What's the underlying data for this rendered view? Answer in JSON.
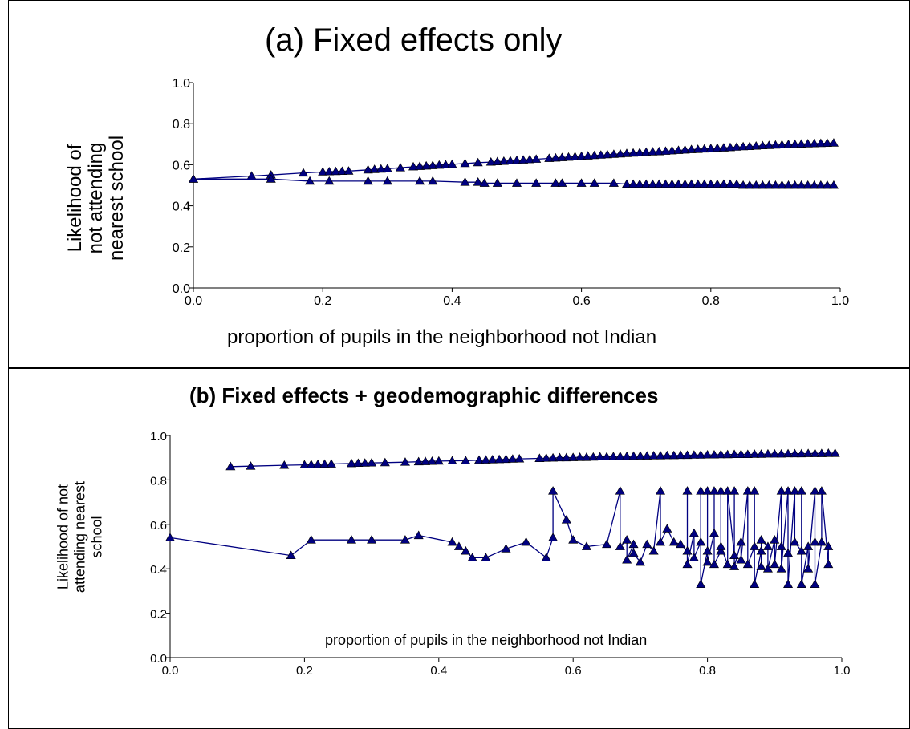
{
  "chart_data": [
    {
      "type": "line",
      "title": "(a) Fixed effects only",
      "xlabel": "proportion of pupils in the neighborhood not Indian",
      "ylabel": "Likelihood of not attending nearest school",
      "ylabel_lines": [
        "Likelihood of",
        "not attending",
        "nearest school"
      ],
      "xlim": [
        0,
        1
      ],
      "ylim": [
        0,
        1
      ],
      "xticks": [
        "0.0",
        "0.2",
        "0.4",
        "0.6",
        "0.8",
        "1.0"
      ],
      "yticks": [
        "0.0",
        "0.2",
        "0.4",
        "0.6",
        "0.8",
        "1.0"
      ],
      "grid": false,
      "marker": "triangle",
      "series_color": "#000080",
      "series": [
        {
          "x": [
            0.0,
            0.09,
            0.12,
            0.17,
            0.2,
            0.21,
            0.22,
            0.23,
            0.24,
            0.27,
            0.28,
            0.29,
            0.3,
            0.32,
            0.34,
            0.35,
            0.36,
            0.37,
            0.38,
            0.39,
            0.4,
            0.42,
            0.44,
            0.46,
            0.47,
            0.48,
            0.49,
            0.5,
            0.51,
            0.52,
            0.53,
            0.55,
            0.56,
            0.57,
            0.58,
            0.59,
            0.6,
            0.61,
            0.62,
            0.63,
            0.64,
            0.65,
            0.66,
            0.67,
            0.68,
            0.69,
            0.7,
            0.71,
            0.72,
            0.73,
            0.74,
            0.75,
            0.76,
            0.77,
            0.78,
            0.79,
            0.8,
            0.81,
            0.82,
            0.83,
            0.84,
            0.85,
            0.86,
            0.87,
            0.88,
            0.89,
            0.9,
            0.91,
            0.92,
            0.93,
            0.94,
            0.95,
            0.96,
            0.97,
            0.98,
            0.99
          ],
          "y": [
            0.53,
            0.545,
            0.55,
            0.56,
            0.565,
            0.566,
            0.567,
            0.568,
            0.569,
            0.575,
            0.577,
            0.579,
            0.581,
            0.585,
            0.59,
            0.592,
            0.594,
            0.596,
            0.598,
            0.6,
            0.602,
            0.606,
            0.61,
            0.613,
            0.615,
            0.617,
            0.619,
            0.621,
            0.623,
            0.625,
            0.627,
            0.631,
            0.633,
            0.635,
            0.637,
            0.639,
            0.641,
            0.643,
            0.645,
            0.647,
            0.649,
            0.651,
            0.653,
            0.655,
            0.657,
            0.659,
            0.661,
            0.663,
            0.664,
            0.666,
            0.668,
            0.67,
            0.672,
            0.674,
            0.675,
            0.677,
            0.679,
            0.681,
            0.682,
            0.684,
            0.686,
            0.688,
            0.689,
            0.691,
            0.693,
            0.694,
            0.696,
            0.697,
            0.699,
            0.7,
            0.701,
            0.702,
            0.703,
            0.704,
            0.705,
            0.706
          ]
        },
        {
          "x": [
            0.0,
            0.12,
            0.18,
            0.21,
            0.27,
            0.3,
            0.35,
            0.37,
            0.42,
            0.44,
            0.45,
            0.47,
            0.5,
            0.53,
            0.56,
            0.57,
            0.6,
            0.62,
            0.65,
            0.67,
            0.68,
            0.69,
            0.7,
            0.71,
            0.72,
            0.73,
            0.74,
            0.75,
            0.76,
            0.77,
            0.78,
            0.79,
            0.8,
            0.81,
            0.82,
            0.83,
            0.84,
            0.85,
            0.86,
            0.87,
            0.88,
            0.89,
            0.9,
            0.91,
            0.92,
            0.93,
            0.94,
            0.95,
            0.96,
            0.97,
            0.98,
            0.99
          ],
          "y": [
            0.53,
            0.53,
            0.52,
            0.52,
            0.52,
            0.52,
            0.52,
            0.52,
            0.515,
            0.515,
            0.51,
            0.51,
            0.51,
            0.51,
            0.51,
            0.51,
            0.51,
            0.51,
            0.51,
            0.505,
            0.505,
            0.505,
            0.505,
            0.505,
            0.505,
            0.505,
            0.505,
            0.505,
            0.505,
            0.505,
            0.505,
            0.505,
            0.505,
            0.505,
            0.505,
            0.505,
            0.505,
            0.5,
            0.5,
            0.5,
            0.5,
            0.5,
            0.5,
            0.5,
            0.5,
            0.5,
            0.5,
            0.5,
            0.5,
            0.5,
            0.5,
            0.5
          ]
        }
      ]
    },
    {
      "type": "line",
      "title": "(b) Fixed effects + geodemographic differences",
      "xlabel": "proportion of pupils in the neighborhood not Indian",
      "ylabel": "Likelihood of not attending nearest school",
      "ylabel_lines": [
        "Likelihood of not",
        "attending nearest",
        "school"
      ],
      "xlim": [
        0,
        1
      ],
      "ylim": [
        0,
        1
      ],
      "xticks": [
        "0.0",
        "0.2",
        "0.4",
        "0.6",
        "0.8",
        "1.0"
      ],
      "yticks": [
        "0.0",
        "0.2",
        "0.4",
        "0.6",
        "0.8",
        "1.0"
      ],
      "grid": false,
      "marker": "triangle",
      "series_color": "#000080",
      "series": [
        {
          "x": [
            0.09,
            0.12,
            0.17,
            0.2,
            0.21,
            0.22,
            0.23,
            0.24,
            0.27,
            0.28,
            0.29,
            0.3,
            0.32,
            0.35,
            0.37,
            0.38,
            0.39,
            0.4,
            0.42,
            0.44,
            0.46,
            0.47,
            0.48,
            0.49,
            0.5,
            0.51,
            0.52,
            0.55,
            0.56,
            0.57,
            0.58,
            0.59,
            0.6,
            0.61,
            0.62,
            0.63,
            0.64,
            0.65,
            0.66,
            0.67,
            0.68,
            0.69,
            0.7,
            0.71,
            0.72,
            0.73,
            0.74,
            0.75,
            0.76,
            0.77,
            0.78,
            0.79,
            0.8,
            0.81,
            0.82,
            0.83,
            0.84,
            0.85,
            0.86,
            0.87,
            0.88,
            0.89,
            0.9,
            0.91,
            0.92,
            0.93,
            0.94,
            0.95,
            0.96,
            0.97,
            0.98,
            0.99
          ],
          "y": [
            0.86,
            0.862,
            0.866,
            0.868,
            0.869,
            0.87,
            0.871,
            0.872,
            0.874,
            0.875,
            0.876,
            0.877,
            0.878,
            0.88,
            0.882,
            0.883,
            0.884,
            0.885,
            0.886,
            0.887,
            0.889,
            0.89,
            0.891,
            0.892,
            0.893,
            0.894,
            0.895,
            0.897,
            0.898,
            0.899,
            0.9,
            0.9,
            0.901,
            0.902,
            0.902,
            0.903,
            0.904,
            0.904,
            0.905,
            0.906,
            0.906,
            0.907,
            0.908,
            0.908,
            0.909,
            0.909,
            0.91,
            0.91,
            0.911,
            0.911,
            0.912,
            0.912,
            0.913,
            0.913,
            0.914,
            0.914,
            0.915,
            0.915,
            0.915,
            0.916,
            0.916,
            0.917,
            0.917,
            0.917,
            0.918,
            0.918,
            0.918,
            0.919,
            0.919,
            0.919,
            0.92,
            0.92
          ]
        },
        {
          "x": [
            0.0,
            0.18,
            0.21,
            0.27,
            0.3,
            0.35,
            0.37,
            0.42,
            0.43,
            0.44,
            0.45,
            0.47,
            0.5,
            0.53,
            0.56,
            0.57,
            0.57,
            0.59,
            0.6,
            0.62,
            0.65,
            0.67,
            0.67,
            0.68,
            0.68,
            0.69,
            0.69,
            0.7,
            0.71,
            0.72,
            0.73,
            0.73,
            0.74,
            0.75,
            0.76,
            0.77,
            0.77,
            0.77,
            0.78,
            0.78,
            0.79,
            0.79,
            0.79,
            0.8,
            0.8,
            0.8,
            0.81,
            0.81,
            0.81,
            0.82,
            0.82,
            0.82,
            0.83,
            0.83,
            0.84,
            0.84,
            0.84,
            0.85,
            0.85,
            0.86,
            0.86,
            0.87,
            0.87,
            0.87,
            0.88,
            0.88,
            0.88,
            0.89,
            0.89,
            0.9,
            0.9,
            0.91,
            0.91,
            0.91,
            0.92,
            0.92,
            0.92,
            0.93,
            0.93,
            0.94,
            0.94,
            0.94,
            0.95,
            0.95,
            0.96,
            0.96,
            0.96,
            0.97,
            0.97,
            0.98,
            0.98
          ],
          "y": [
            0.54,
            0.46,
            0.53,
            0.53,
            0.53,
            0.53,
            0.55,
            0.52,
            0.5,
            0.48,
            0.45,
            0.45,
            0.49,
            0.52,
            0.45,
            0.54,
            0.75,
            0.62,
            0.53,
            0.5,
            0.51,
            0.75,
            0.5,
            0.53,
            0.44,
            0.51,
            0.47,
            0.43,
            0.51,
            0.48,
            0.75,
            0.52,
            0.58,
            0.52,
            0.51,
            0.48,
            0.75,
            0.42,
            0.56,
            0.45,
            0.52,
            0.75,
            0.33,
            0.48,
            0.75,
            0.43,
            0.56,
            0.75,
            0.42,
            0.48,
            0.75,
            0.5,
            0.42,
            0.75,
            0.46,
            0.75,
            0.41,
            0.52,
            0.44,
            0.75,
            0.42,
            0.5,
            0.75,
            0.33,
            0.48,
            0.41,
            0.53,
            0.5,
            0.4,
            0.53,
            0.42,
            0.75,
            0.5,
            0.4,
            0.75,
            0.47,
            0.33,
            0.75,
            0.52,
            0.48,
            0.75,
            0.33,
            0.5,
            0.4,
            0.75,
            0.52,
            0.33,
            0.52,
            0.75,
            0.42,
            0.5
          ]
        }
      ]
    }
  ]
}
